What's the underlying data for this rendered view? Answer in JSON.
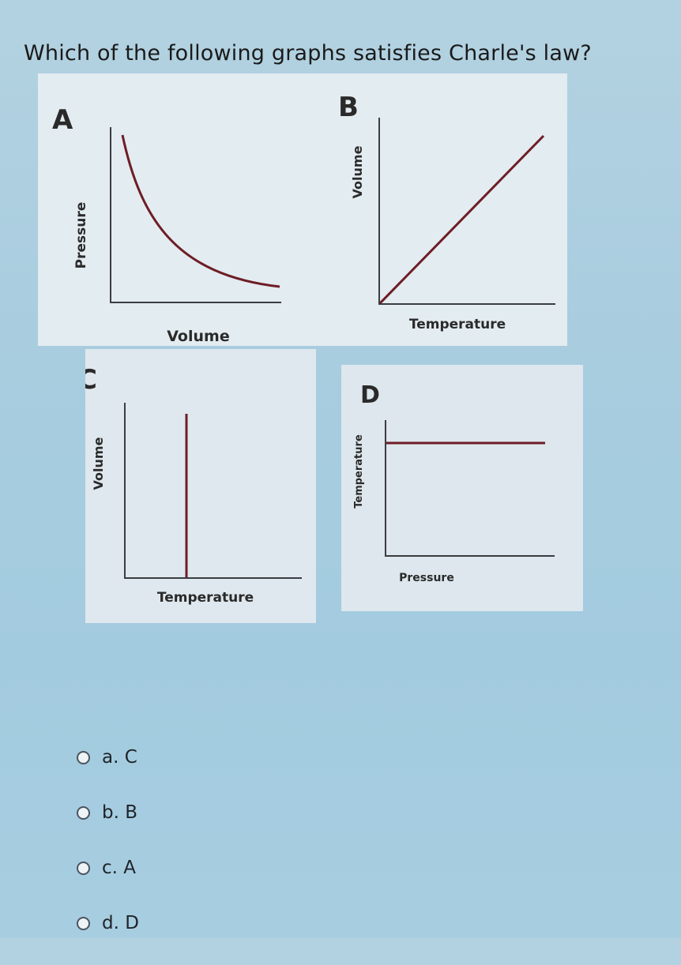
{
  "question": {
    "text": "Which of the following graphs satisfies Charle's law?"
  },
  "graphs": {
    "A": {
      "letter": "A",
      "ylabel": "Pressure",
      "xlabel": "Volume",
      "shape": "inverse-curve"
    },
    "B": {
      "letter": "B",
      "ylabel": "Volume",
      "xlabel": "Temperature",
      "shape": "rising-line"
    },
    "C": {
      "letter": "C",
      "ylabel": "Volume",
      "xlabel": "Temperature",
      "shape": "vertical-line"
    },
    "D": {
      "letter": "D",
      "ylabel": "Temperature",
      "xlabel": "Pressure",
      "shape": "horizontal-line"
    }
  },
  "options": [
    {
      "label": "a. C"
    },
    {
      "label": "b. B"
    },
    {
      "label": "c. A"
    },
    {
      "label": "d. D"
    }
  ],
  "colors": {
    "curve": "#6e1d26",
    "axis": "#3a3d42"
  }
}
